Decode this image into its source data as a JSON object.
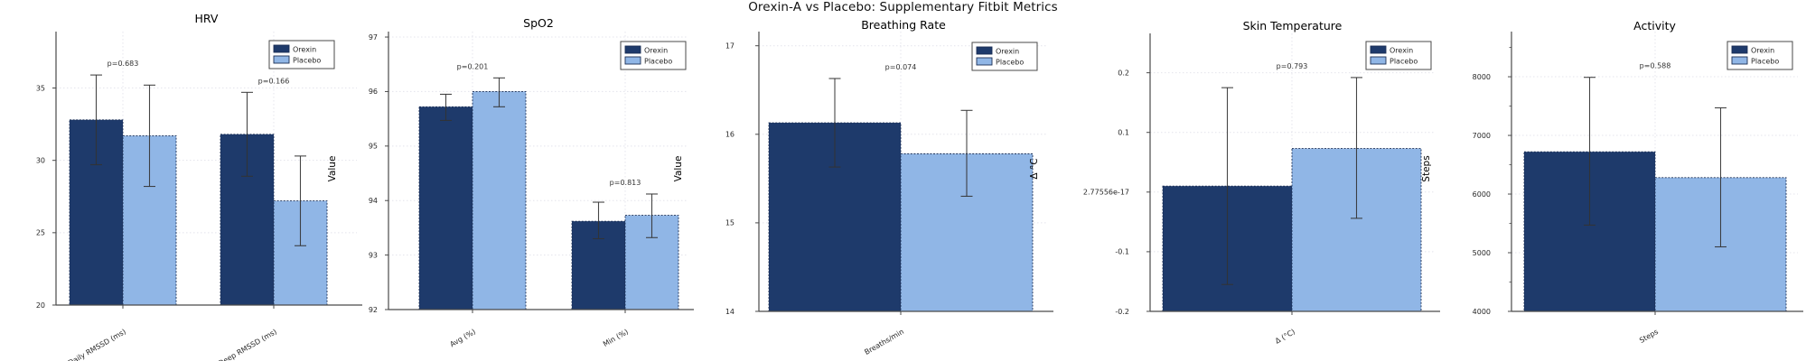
{
  "figure_title": "Orexin-A vs Placebo: Supplementary Fitbit Metrics",
  "colors": {
    "orexin": "#1e3a6b",
    "placebo": "#90b6e6",
    "bar_edge": "#1b2f55",
    "error_bar": "#333333",
    "grid": "#e4e4ec",
    "spine": "#4a4a4a",
    "tick_text": "#262626",
    "title_text": "#000000",
    "legend_border": "#4a4a4a",
    "background": "#ffffff"
  },
  "chart_data": [
    {
      "type": "bar",
      "title": "HRV",
      "ylabel": "",
      "categories": [
        "Daily RMSSD (ms)",
        "Deep RMSSD (ms)"
      ],
      "series": [
        {
          "name": "Orexin",
          "values": [
            32.8,
            31.8
          ],
          "err_low": [
            29.7,
            28.9
          ],
          "err_high": [
            35.9,
            34.7
          ]
        },
        {
          "name": "Placebo",
          "values": [
            31.7,
            27.2
          ],
          "err_low": [
            28.2,
            24.1
          ],
          "err_high": [
            35.2,
            30.3
          ]
        }
      ],
      "p_labels": [
        "p=0.683",
        "p=0.166"
      ],
      "ylim": [
        20,
        38.9
      ],
      "yticks": [
        20,
        25,
        30,
        35
      ],
      "ytick_labels": [
        "20",
        "25",
        "30",
        "35"
      ],
      "grid": true,
      "legend_position": "top-right"
    },
    {
      "type": "bar",
      "title": "SpO2",
      "ylabel": "Value",
      "categories": [
        "Avg (%)",
        "Min (%)"
      ],
      "series": [
        {
          "name": "Orexin",
          "values": [
            95.72,
            93.62
          ],
          "err_low": [
            95.47,
            93.3
          ],
          "err_high": [
            95.95,
            93.97
          ]
        },
        {
          "name": "Placebo",
          "values": [
            96.0,
            93.73
          ],
          "err_low": [
            95.72,
            93.32
          ],
          "err_high": [
            96.25,
            94.12
          ]
        }
      ],
      "p_labels": [
        "p=0.201",
        "p=0.813"
      ],
      "ylim": [
        92,
        97.1
      ],
      "yticks": [
        92,
        93,
        94,
        95,
        96,
        97
      ],
      "ytick_labels": [
        "92",
        "93",
        "94",
        "95",
        "96",
        "97"
      ],
      "grid": true,
      "legend_position": "top-right"
    },
    {
      "type": "bar",
      "title": "Breathing Rate",
      "ylabel": "Value",
      "categories": [
        "Breaths/min"
      ],
      "series": [
        {
          "name": "Orexin",
          "values": [
            16.13
          ],
          "err_low": [
            15.63
          ],
          "err_high": [
            16.63
          ]
        },
        {
          "name": "Placebo",
          "values": [
            15.78
          ],
          "err_low": [
            15.3
          ],
          "err_high": [
            16.27
          ]
        }
      ],
      "p_labels": [
        "p=0.074"
      ],
      "ylim": [
        14,
        17.16
      ],
      "yticks": [
        14,
        15,
        16,
        17
      ],
      "ytick_labels": [
        "14",
        "15",
        "16",
        "17"
      ],
      "grid": true,
      "legend_position": "top-right"
    },
    {
      "type": "bar",
      "title": "Skin Temperature",
      "ylabel": "Δ °C",
      "categories": [
        "Δ (°C)"
      ],
      "series": [
        {
          "name": "Orexin",
          "values": [
            0.01
          ],
          "err_low": [
            -0.155
          ],
          "err_high": [
            0.175
          ]
        },
        {
          "name": "Placebo",
          "values": [
            0.073
          ],
          "err_low": [
            -0.044
          ],
          "err_high": [
            0.192
          ]
        }
      ],
      "p_labels": [
        "p=0.793"
      ],
      "ylim": [
        -0.2,
        0.266
      ],
      "yticks": [
        -0.2,
        -0.1,
        0,
        0.1,
        0.2
      ],
      "ytick_labels": [
        "-0.2",
        "-0.1",
        "2.77556e-17",
        "0.1",
        "0.2"
      ],
      "grid": true,
      "legend_position": "top-right"
    },
    {
      "type": "bar",
      "title": "Activity",
      "ylabel": "Steps",
      "categories": [
        "Steps"
      ],
      "series": [
        {
          "name": "Orexin",
          "values": [
            6720
          ],
          "err_low": [
            5470
          ],
          "err_high": [
            7990
          ]
        },
        {
          "name": "Placebo",
          "values": [
            6280
          ],
          "err_low": [
            5100
          ],
          "err_high": [
            7470
          ]
        }
      ],
      "p_labels": [
        "p=0.588"
      ],
      "ylim": [
        4000,
        8770
      ],
      "yticks": [
        4000,
        5000,
        6000,
        7000,
        8000
      ],
      "ytick_labels": [
        "4000",
        "5000",
        "6000",
        "7000",
        "8000"
      ],
      "yticks_minor": [
        4500,
        5500,
        6500,
        7500,
        8500
      ],
      "grid": true,
      "legend_position": "top-right"
    }
  ]
}
